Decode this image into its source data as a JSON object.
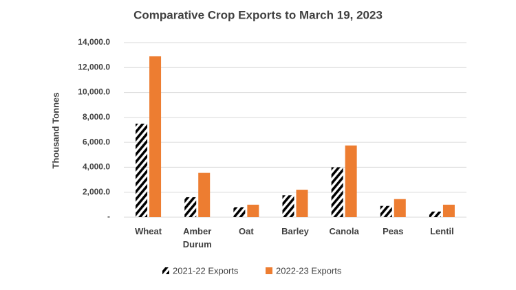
{
  "chart_data": {
    "type": "bar",
    "title": "Comparative Crop Exports to March 19, 2023",
    "y_label": "Thousand Tonnes",
    "categories": [
      "Wheat",
      "Amber Durum",
      "Oat",
      "Barley",
      "Canola",
      "Peas",
      "Lentil"
    ],
    "series": [
      {
        "name": "2021-22 Exports",
        "color": "#4472c4",
        "pattern": "hatch",
        "values": [
          7500,
          1600,
          800,
          1750,
          4000,
          900,
          450
        ]
      },
      {
        "name": "2022-23 Exports",
        "color": "#ed7d31",
        "values": [
          12900,
          3550,
          1000,
          2200,
          5750,
          1450,
          1000
        ]
      }
    ],
    "ylim": [
      0,
      14000
    ],
    "yticks": [
      {
        "value": 0,
        "label": "-"
      },
      {
        "value": 2000,
        "label": "2,000.0"
      },
      {
        "value": 4000,
        "label": "4,000.0"
      },
      {
        "value": 6000,
        "label": "6,000.0"
      },
      {
        "value": 8000,
        "label": "8,000.0"
      },
      {
        "value": 10000,
        "label": "10,000.0"
      },
      {
        "value": 12000,
        "label": "12,000.0"
      },
      {
        "value": 14000,
        "label": "14,000.0"
      }
    ],
    "grid": true,
    "legend": "bottom"
  }
}
